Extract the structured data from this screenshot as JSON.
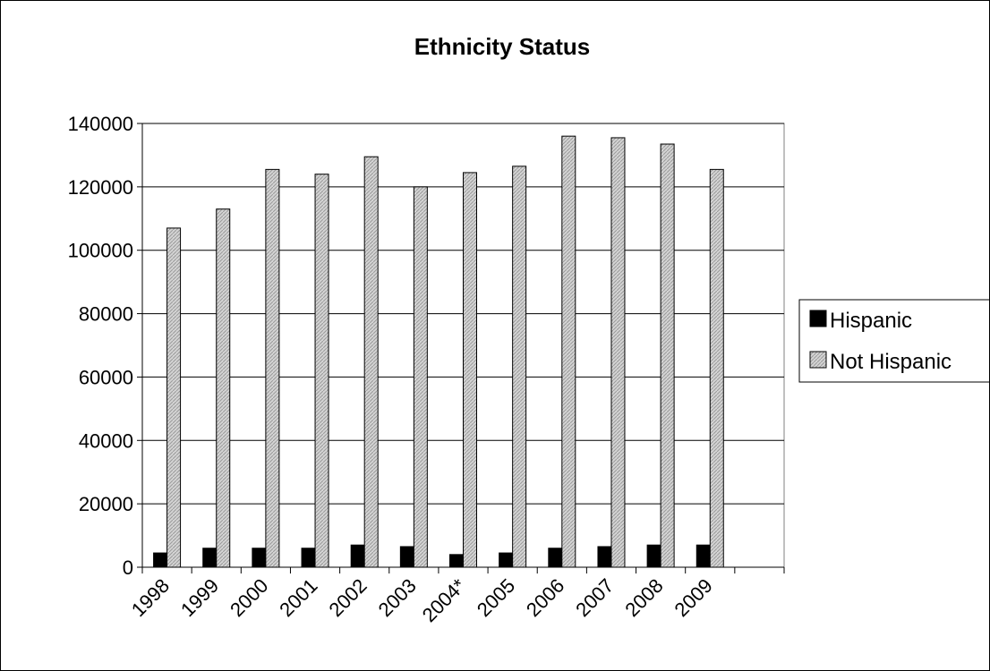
{
  "chart_data": {
    "type": "bar",
    "title": "Ethnicity Status",
    "xlabel": "",
    "ylabel": "",
    "categories": [
      "1998",
      "1999",
      "2000",
      "2001",
      "2002",
      "2003",
      "2004*",
      "2005",
      "2006",
      "2007",
      "2008",
      "2009",
      ""
    ],
    "series": [
      {
        "name": "Hispanic",
        "color": "#000000",
        "values": [
          4500,
          6000,
          6000,
          6000,
          7000,
          6500,
          4000,
          4500,
          6000,
          6500,
          7000,
          7000,
          null
        ]
      },
      {
        "name": "Not Hispanic",
        "color": "#c8c8c8",
        "values": [
          107000,
          113000,
          125500,
          124000,
          129500,
          120000,
          124500,
          126500,
          136000,
          135500,
          133500,
          125500,
          null
        ]
      }
    ],
    "ylim": [
      0,
      140000
    ],
    "yticks": [
      "0",
      "20000",
      "40000",
      "60000",
      "80000",
      "100000",
      "120000",
      "140000"
    ],
    "grid": true,
    "legend_position": "right"
  }
}
